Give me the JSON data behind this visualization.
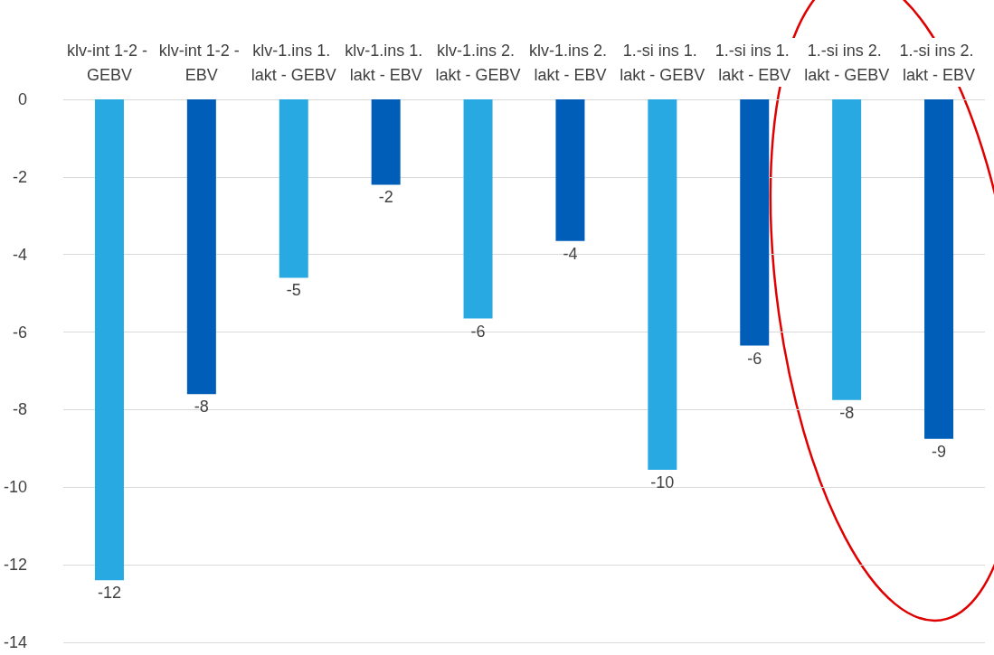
{
  "chart_data": {
    "type": "bar",
    "categories": [
      "klv-int 1-2 - GEBV",
      "klv-int 1-2 - EBV",
      "klv-1.ins 1. lakt - GEBV",
      "klv-1.ins 1. lakt - EBV",
      "klv-1.ins 2. lakt - GEBV",
      "klv-1.ins 2. lakt - EBV",
      "1.-si ins 1. lakt - GEBV",
      "1.-si ins 1. lakt - EBV",
      "1.-si ins 2. lakt - GEBV",
      "1.-si ins 2. lakt - EBV"
    ],
    "values": [
      -12.4,
      -7.6,
      -4.6,
      -2.2,
      -5.65,
      -3.65,
      -9.55,
      -6.35,
      -7.75,
      -8.75
    ],
    "colors": [
      "#29a9e1",
      "#005eb8",
      "#29a9e1",
      "#005eb8",
      "#29a9e1",
      "#005eb8",
      "#29a9e1",
      "#005eb8",
      "#29a9e1",
      "#005eb8"
    ],
    "value_labels": [
      "-12",
      "-8",
      "-5",
      "-2",
      "-6",
      "-4",
      "-10",
      "-6",
      "-8",
      "-9"
    ],
    "ylim": [
      -14,
      0
    ],
    "yticks": [
      -14,
      -12,
      -10,
      -8,
      -6,
      -4,
      -2,
      0
    ],
    "grid": "y"
  }
}
